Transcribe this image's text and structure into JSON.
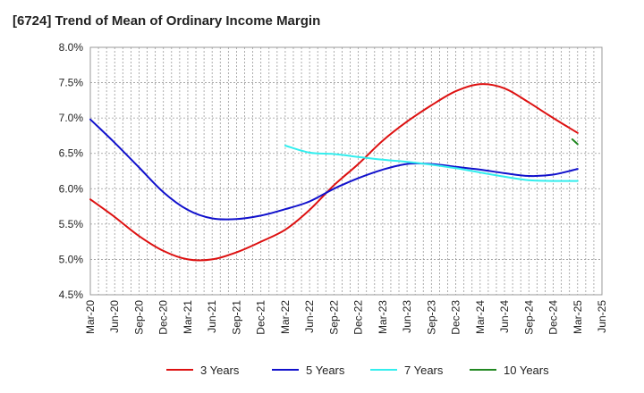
{
  "chart_data": {
    "type": "line",
    "title": "[6724]  Trend of Mean of Ordinary Income Margin",
    "xlabel": "",
    "ylabel": "",
    "x": [
      "Mar-20",
      "Jun-20",
      "Sep-20",
      "Dec-20",
      "Mar-21",
      "Jun-21",
      "Sep-21",
      "Dec-21",
      "Mar-22",
      "Jun-22",
      "Sep-22",
      "Dec-22",
      "Mar-23",
      "Jun-23",
      "Sep-23",
      "Dec-23",
      "Mar-24",
      "Jun-24",
      "Sep-24",
      "Dec-24",
      "Mar-25",
      "Jun-25"
    ],
    "ylim": [
      4.5,
      8.0
    ],
    "yticks": [
      "4.5%",
      "5.0%",
      "5.5%",
      "6.0%",
      "6.5%",
      "7.0%",
      "7.5%",
      "8.0%"
    ],
    "grid": true,
    "legend_position": "bottom",
    "series": [
      {
        "name": "3 Years",
        "color": "#dd1111",
        "values": [
          5.85,
          5.6,
          5.33,
          5.12,
          5.0,
          5.0,
          5.1,
          5.25,
          5.42,
          5.7,
          6.05,
          6.35,
          6.68,
          6.95,
          7.18,
          7.38,
          7.48,
          7.42,
          7.22,
          7.0,
          6.79,
          null
        ]
      },
      {
        "name": "5 Years",
        "color": "#1111cc",
        "values": [
          6.98,
          6.65,
          6.3,
          5.95,
          5.7,
          5.58,
          5.57,
          5.62,
          5.71,
          5.82,
          6.0,
          6.15,
          6.27,
          6.35,
          6.35,
          6.31,
          6.27,
          6.22,
          6.18,
          6.2,
          6.28,
          null
        ]
      },
      {
        "name": "7 Years",
        "color": "#33eeee",
        "values": [
          null,
          null,
          null,
          null,
          null,
          null,
          null,
          null,
          6.61,
          6.51,
          6.49,
          6.45,
          6.41,
          6.38,
          6.34,
          6.29,
          6.23,
          6.17,
          6.12,
          6.11,
          6.11,
          null
        ]
      },
      {
        "name": "10 Years",
        "color": "#228822",
        "values": [
          null,
          null,
          null,
          null,
          null,
          null,
          null,
          null,
          null,
          null,
          null,
          null,
          null,
          null,
          null,
          null,
          null,
          null,
          null,
          null,
          6.63,
          null
        ],
        "start_value": 6.7
      }
    ]
  }
}
